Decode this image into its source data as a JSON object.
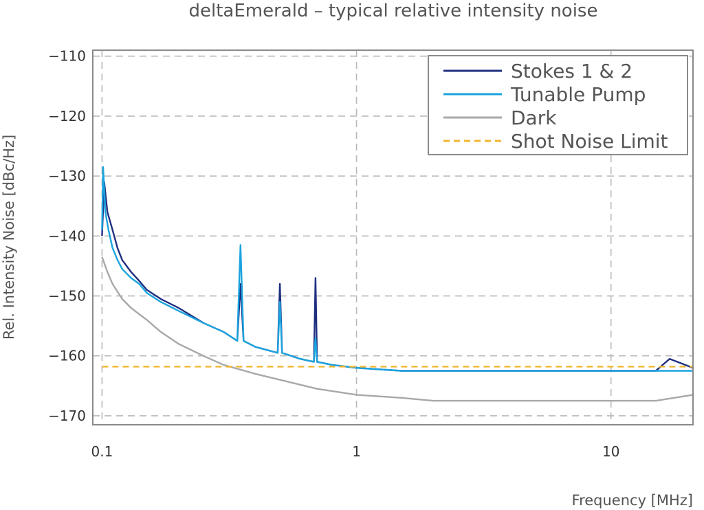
{
  "chart_data": {
    "type": "line",
    "title": "deltaEmerald – typical relative intensity noise",
    "xlabel": "Frequency [MHz]",
    "ylabel": "Rel. Intensity Noise [dBc/Hz]",
    "xscale": "log",
    "xlim": [
      0.092,
      21
    ],
    "ylim": [
      -171.5,
      -109
    ],
    "x_ticks": [
      0.1,
      1,
      10
    ],
    "x_tick_labels": [
      "0.1",
      "1",
      "10"
    ],
    "y_ticks": [
      -110,
      -120,
      -130,
      -140,
      -150,
      -160,
      -170
    ],
    "y_tick_labels": [
      "−110",
      "−120",
      "−130",
      "−140",
      "−150",
      "−160",
      "−170"
    ],
    "grid": true,
    "legend_position": "top-right",
    "series": [
      {
        "name": "Stokes 1 & 2",
        "color": "#1f2f80",
        "x": [
          0.1,
          0.102,
          0.105,
          0.11,
          0.115,
          0.12,
          0.13,
          0.14,
          0.15,
          0.17,
          0.2,
          0.25,
          0.3,
          0.34,
          0.35,
          0.36,
          0.4,
          0.49,
          0.5,
          0.51,
          0.6,
          0.68,
          0.69,
          0.7,
          0.8,
          1.0,
          1.5,
          2,
          3,
          5,
          7,
          10,
          15,
          17,
          21
        ],
        "y": [
          -140,
          -131,
          -136,
          -139,
          -142,
          -144,
          -146,
          -147.5,
          -149,
          -150.5,
          -152,
          -154.5,
          -156,
          -157.5,
          -148,
          -157.5,
          -158.5,
          -159.5,
          -148,
          -159.5,
          -160.5,
          -161,
          -147,
          -161,
          -161.5,
          -162,
          -162.5,
          -162.5,
          -162.5,
          -162.5,
          -162.5,
          -162.5,
          -162.5,
          -160.5,
          -162
        ]
      },
      {
        "name": "Tunable Pump",
        "color": "#1aa3de",
        "x": [
          0.1,
          0.101,
          0.103,
          0.106,
          0.11,
          0.115,
          0.12,
          0.13,
          0.14,
          0.15,
          0.17,
          0.2,
          0.25,
          0.3,
          0.34,
          0.35,
          0.36,
          0.4,
          0.49,
          0.5,
          0.51,
          0.6,
          0.68,
          0.69,
          0.7,
          0.8,
          1.0,
          1.5,
          2,
          3,
          5,
          7,
          10,
          15,
          21
        ],
        "y": [
          -139,
          -128.5,
          -136,
          -139,
          -142,
          -144,
          -145.5,
          -147,
          -148,
          -149.5,
          -151,
          -152.5,
          -154.5,
          -156,
          -157.5,
          -141.5,
          -157.5,
          -158.5,
          -159.5,
          -151,
          -159.5,
          -160.5,
          -161,
          -157,
          -161,
          -161.5,
          -162,
          -162.5,
          -162.5,
          -162.5,
          -162.5,
          -162.5,
          -162.5,
          -162.5,
          -162.5
        ]
      },
      {
        "name": "Dark",
        "color": "#a8a8a8",
        "x": [
          0.1,
          0.105,
          0.11,
          0.12,
          0.13,
          0.15,
          0.17,
          0.2,
          0.25,
          0.3,
          0.4,
          0.5,
          0.7,
          1.0,
          1.5,
          2,
          3,
          5,
          7,
          10,
          15,
          21
        ],
        "y": [
          -143.5,
          -146,
          -148,
          -150.5,
          -152,
          -154,
          -156,
          -158,
          -160,
          -161.5,
          -163,
          -164,
          -165.5,
          -166.5,
          -167,
          -167.5,
          -167.5,
          -167.5,
          -167.5,
          -167.5,
          -167.5,
          -166.5
        ]
      },
      {
        "name": "Shot Noise Limit",
        "color": "#f2b630",
        "style": "dashed",
        "x": [
          0.1,
          21
        ],
        "y": [
          -161.8,
          -161.8
        ]
      }
    ]
  }
}
